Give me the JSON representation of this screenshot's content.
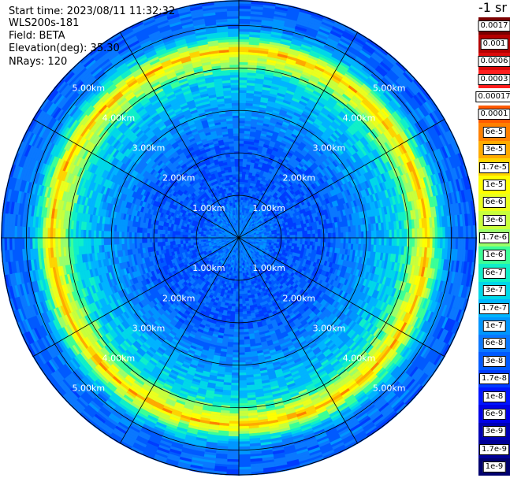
{
  "header": {
    "start_time": "Start time: 2023/08/11 11:32:32",
    "instrument": "WLS200s-181",
    "field": "Field: BETA",
    "elevation": "Elevation(deg): 35.30",
    "nrays": "NRays: 120"
  },
  "colorbar": {
    "title": "-1 sr",
    "levels": [
      {
        "label": "0.0017",
        "color": "#7a0000"
      },
      {
        "label": "0.001",
        "color": "#b40000"
      },
      {
        "label": "0.0006",
        "color": "#dc0a0a"
      },
      {
        "label": "0.0003",
        "color": "#ff1e1e"
      },
      {
        "label": "0.00017",
        "color": "#ffffff"
      },
      {
        "label": "0.0001",
        "color": "#ff5a00"
      },
      {
        "label": "6e-5",
        "color": "#ff8000"
      },
      {
        "label": "3e-5",
        "color": "#ffaa00"
      },
      {
        "label": "1.7e-5",
        "color": "#ffd400"
      },
      {
        "label": "1e-5",
        "color": "#ffff00"
      },
      {
        "label": "6e-6",
        "color": "#eaff1e"
      },
      {
        "label": "3e-6",
        "color": "#c8ff3c"
      },
      {
        "label": "1.7e-6",
        "color": "#9aff6a"
      },
      {
        "label": "1e-6",
        "color": "#3cff96"
      },
      {
        "label": "6e-7",
        "color": "#10f0c8"
      },
      {
        "label": "3e-7",
        "color": "#00d8e8"
      },
      {
        "label": "1.7e-7",
        "color": "#00b4ff"
      },
      {
        "label": "1e-7",
        "color": "#0096ff"
      },
      {
        "label": "6e-8",
        "color": "#0a78ff"
      },
      {
        "label": "3e-8",
        "color": "#005aff"
      },
      {
        "label": "1.7e-8",
        "color": "#003cff"
      },
      {
        "label": "1e-8",
        "color": "#0014ff"
      },
      {
        "label": "6e-9",
        "color": "#0000e6"
      },
      {
        "label": "3e-9",
        "color": "#0000b4"
      },
      {
        "label": "1.7e-9",
        "color": "#000096"
      },
      {
        "label": "1e-9",
        "color": "#00006e"
      }
    ]
  },
  "chart_data": {
    "type": "heatmap",
    "projection": "polar (PPI)",
    "field": "BETA",
    "units": "-1 sr",
    "elevation_deg": 35.3,
    "nrays": 120,
    "range_rings_km": [
      1,
      2,
      3,
      4,
      5
    ],
    "range_ring_labels": [
      "1.00km",
      "2.00km",
      "3.00km",
      "4.00km",
      "5.00km"
    ],
    "spoke_angles_deg": [
      0,
      30,
      60,
      90,
      120,
      150,
      180,
      210,
      240,
      270,
      300,
      330
    ],
    "max_range_km": 5.6,
    "background_level": "3e-8",
    "range_profile": [
      {
        "range_km": 0.5,
        "level": "6e-8"
      },
      {
        "range_km": 1.0,
        "level": "3e-8"
      },
      {
        "range_km": 2.0,
        "level": "3e-8"
      },
      {
        "range_km": 2.6,
        "level": "6e-8"
      },
      {
        "range_km": 3.0,
        "level": "1e-7"
      },
      {
        "range_km": 3.4,
        "level": "1.7e-7"
      },
      {
        "range_km": 3.8,
        "level": "3e-7"
      },
      {
        "range_km": 4.1,
        "level": "1.7e-6"
      },
      {
        "range_km": 4.3,
        "level": "6e-6"
      },
      {
        "range_km": 4.4,
        "level": "3e-5"
      },
      {
        "range_km": 4.5,
        "level": "6e-6"
      },
      {
        "range_km": 4.7,
        "level": "6e-7"
      },
      {
        "range_km": 5.0,
        "level": "6e-8"
      },
      {
        "range_km": 5.6,
        "level": "3e-8"
      }
    ]
  }
}
